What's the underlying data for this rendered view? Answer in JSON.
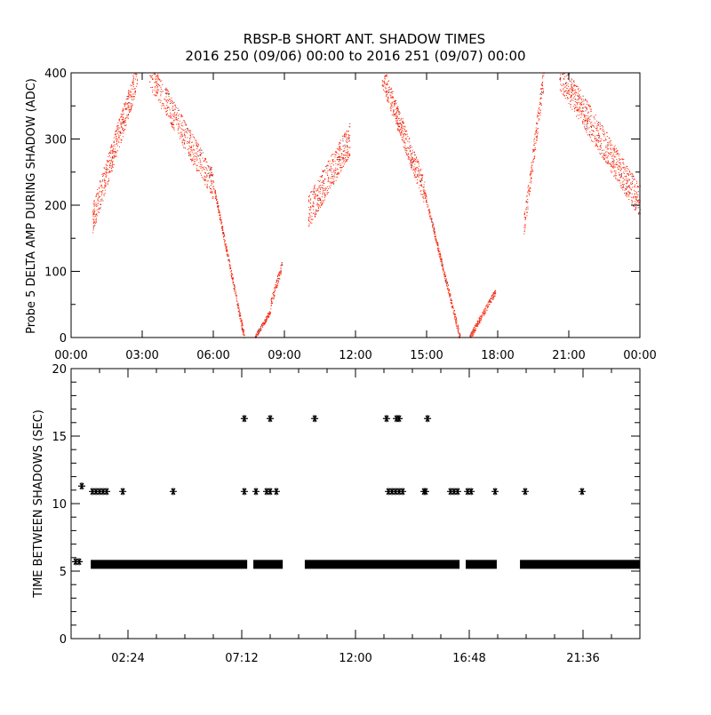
{
  "title": "RBSP-B SHORT ANT. SHADOW TIMES",
  "subtitle": "2016 250 (09/06) 00:00 to 2016 251 (09/07) 00:00",
  "colors": {
    "scatter": "#ff2000",
    "marker": "#000000"
  },
  "chart_data": [
    {
      "type": "scatter",
      "ylabel": "Probe 5 DELTA AMP DURING SHADOW (ADC)",
      "xlabel": "",
      "xlim_hours": [
        0,
        24
      ],
      "ylim": [
        0,
        400
      ],
      "x_tick_labels": [
        "00:00",
        "03:00",
        "06:00",
        "09:00",
        "12:00",
        "15:00",
        "18:00",
        "21:00",
        "00:00"
      ],
      "x_tick_hours": [
        0,
        3,
        6,
        9,
        12,
        15,
        18,
        21,
        24
      ],
      "y_ticks": [
        0,
        100,
        200,
        300,
        400
      ],
      "bands_note": "point clouds: hour range, value range, spread",
      "bands": [
        {
          "t0": 0.9,
          "t1": 2.8,
          "v0": 180,
          "v1": 400,
          "spread": 45,
          "n": 500
        },
        {
          "t0": 3.3,
          "t1": 6.0,
          "v0": 400,
          "v1": 230,
          "spread": 45,
          "n": 550
        },
        {
          "t0": 6.0,
          "t1": 7.3,
          "v0": 230,
          "v1": 0,
          "spread": 12,
          "n": 300
        },
        {
          "t0": 7.75,
          "t1": 8.4,
          "v0": 0,
          "v1": 40,
          "spread": 8,
          "n": 120
        },
        {
          "t0": 8.4,
          "t1": 8.9,
          "v0": 50,
          "v1": 110,
          "spread": 15,
          "n": 100
        },
        {
          "t0": 10.0,
          "t1": 11.75,
          "v0": 190,
          "v1": 300,
          "spread": 50,
          "n": 450
        },
        {
          "t0": 13.1,
          "t1": 14.9,
          "v0": 400,
          "v1": 220,
          "spread": 40,
          "n": 450
        },
        {
          "t0": 14.9,
          "t1": 16.4,
          "v0": 220,
          "v1": 0,
          "spread": 12,
          "n": 320
        },
        {
          "t0": 16.8,
          "t1": 17.9,
          "v0": 0,
          "v1": 70,
          "spread": 10,
          "n": 200
        },
        {
          "t0": 19.1,
          "t1": 19.95,
          "v0": 170,
          "v1": 400,
          "spread": 35,
          "n": 200
        },
        {
          "t0": 20.6,
          "t1": 24.0,
          "v0": 400,
          "v1": 205,
          "spread": 50,
          "n": 800
        }
      ]
    },
    {
      "type": "scatter",
      "ylabel": "TIME BETWEEN SHADOWS (SEC)",
      "xlabel": "",
      "xlim_hours": [
        0,
        24
      ],
      "ylim": [
        0,
        20
      ],
      "x_tick_labels": [
        "02:24",
        "07:12",
        "12:00",
        "16:48",
        "21:36"
      ],
      "x_tick_hours": [
        2.4,
        7.2,
        12.0,
        16.8,
        21.6
      ],
      "y_ticks": [
        0,
        5,
        10,
        15,
        20
      ],
      "dense_segments_value": 5.5,
      "dense_segments_hours": [
        [
          0.83,
          7.43
        ],
        [
          7.69,
          8.93
        ],
        [
          9.86,
          16.39
        ],
        [
          16.65,
          17.96
        ],
        [
          18.94,
          24.0
        ]
      ],
      "points": [
        {
          "t": 0.19,
          "v": 5.7
        },
        {
          "t": 0.34,
          "v": 5.7
        },
        {
          "t": 0.45,
          "v": 11.3
        },
        {
          "t": 0.9,
          "v": 10.9
        },
        {
          "t": 1.05,
          "v": 10.9
        },
        {
          "t": 1.2,
          "v": 10.9
        },
        {
          "t": 1.35,
          "v": 10.9
        },
        {
          "t": 1.5,
          "v": 10.9
        },
        {
          "t": 2.18,
          "v": 10.9
        },
        {
          "t": 4.31,
          "v": 10.9
        },
        {
          "t": 7.31,
          "v": 10.9
        },
        {
          "t": 7.8,
          "v": 10.9
        },
        {
          "t": 8.25,
          "v": 10.9
        },
        {
          "t": 8.4,
          "v": 10.9
        },
        {
          "t": 8.66,
          "v": 10.9
        },
        {
          "t": 13.39,
          "v": 10.9
        },
        {
          "t": 13.54,
          "v": 10.9
        },
        {
          "t": 13.69,
          "v": 10.9
        },
        {
          "t": 13.84,
          "v": 10.9
        },
        {
          "t": 13.99,
          "v": 10.9
        },
        {
          "t": 14.89,
          "v": 10.9
        },
        {
          "t": 14.96,
          "v": 10.9
        },
        {
          "t": 16.01,
          "v": 10.9
        },
        {
          "t": 16.16,
          "v": 10.9
        },
        {
          "t": 16.31,
          "v": 10.9
        },
        {
          "t": 16.73,
          "v": 10.9
        },
        {
          "t": 16.88,
          "v": 10.9
        },
        {
          "t": 17.89,
          "v": 10.9
        },
        {
          "t": 19.16,
          "v": 10.9
        },
        {
          "t": 21.56,
          "v": 10.9
        },
        {
          "t": 7.31,
          "v": 16.3
        },
        {
          "t": 8.4,
          "v": 16.3
        },
        {
          "t": 10.28,
          "v": 16.3
        },
        {
          "t": 13.31,
          "v": 16.3
        },
        {
          "t": 13.73,
          "v": 16.3
        },
        {
          "t": 13.84,
          "v": 16.3
        },
        {
          "t": 15.04,
          "v": 16.3
        }
      ]
    }
  ]
}
